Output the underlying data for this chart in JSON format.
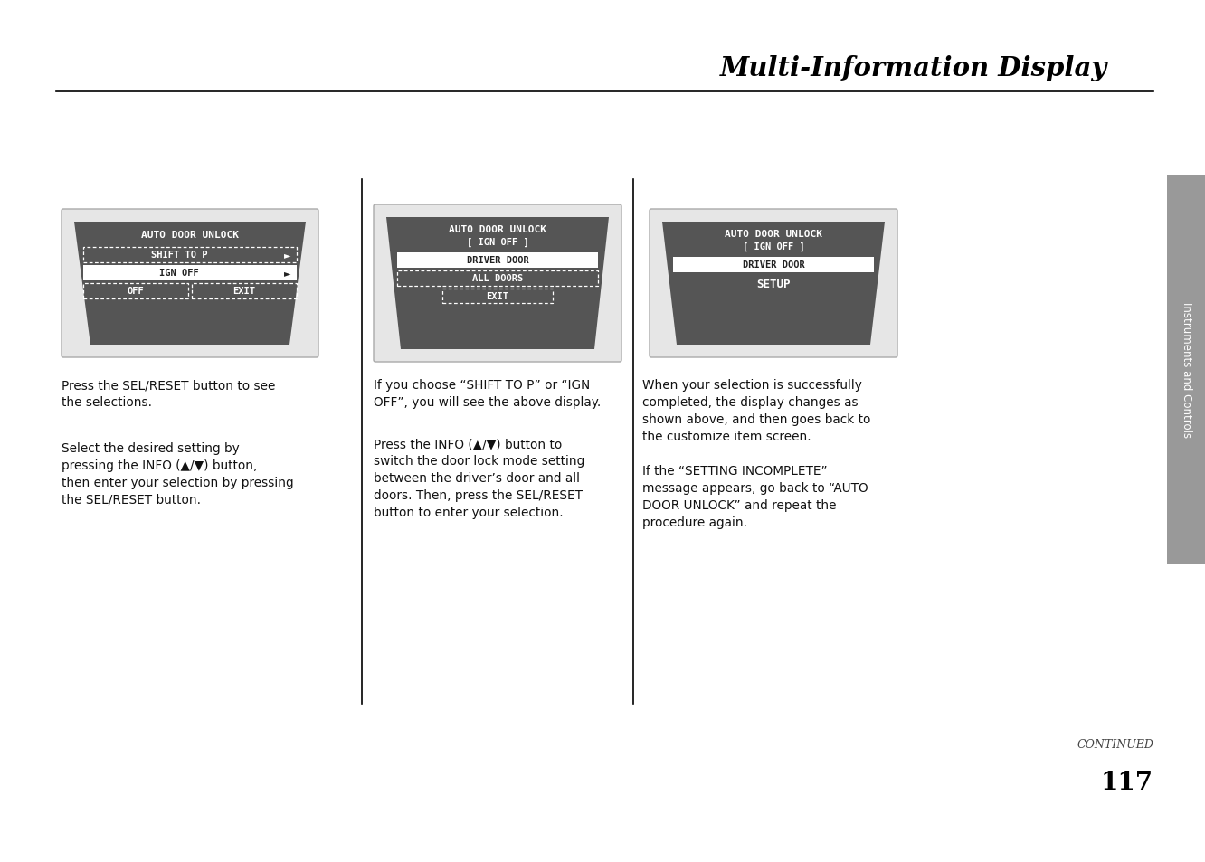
{
  "title": "Multi-Information Display",
  "page_bg": "#ffffff",
  "title_color": "#000000",
  "separator_color": "#000000",
  "panel_bg": "#e8e8e8",
  "screen_bg": "#585858",
  "col_divider": "#000000",
  "sidebar_bg": "#999999",
  "sidebar_text": "Instruments and Controls",
  "continued_text": "CONTINUED",
  "page_num": "117",
  "col1_texts": [
    "Press the SEL/RESET button to see\nthe selections.",
    "Select the desired setting by\npressing the INFO (▲/▼) button,\nthen enter your selection by pressing\nthe SEL/RESET button."
  ],
  "col2_texts": [
    "If you choose “SHIFT TO P” or “IGN\nOFF”, you will see the above display.",
    "Press the INFO (▲/▼) button to\nswitch the door lock mode setting\nbetween the driver’s door and all\ndoors. Then, press the SEL/RESET\nbutton to enter your selection."
  ],
  "col3_texts": [
    "When your selection is successfully\ncompleted, the display changes as\nshown above, and then goes back to\nthe customize item screen.",
    "If the “SETTING INCOMPLETE”\nmessage appears, go back to “AUTO\nDOOR UNLOCK” and repeat the\nprocedure again."
  ]
}
